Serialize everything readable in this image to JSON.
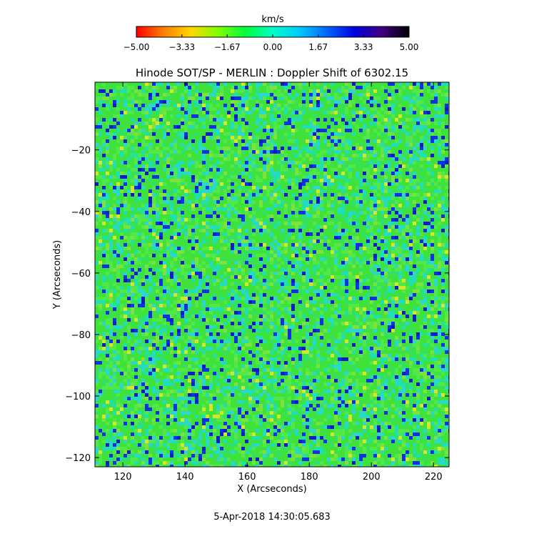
{
  "chart_data": {
    "type": "heatmap",
    "title": "Hinode SOT/SP - MERLIN : Doppler Shift of 6302.15",
    "xlabel": "X (Arcseconds)",
    "ylabel": "Y (Arcseconds)",
    "xlim": [
      111,
      225
    ],
    "ylim": [
      -123,
      2
    ],
    "x_ticks": [
      120,
      140,
      160,
      180,
      200,
      220
    ],
    "y_ticks": [
      -20,
      -40,
      -60,
      -80,
      -100,
      -120
    ],
    "x_tick_labels": [
      "120",
      "140",
      "160",
      "180",
      "200",
      "220"
    ],
    "y_tick_labels": [
      "−20",
      "−40",
      "−60",
      "−80",
      "−100",
      "−120"
    ],
    "colorbar": {
      "label": "km/s",
      "range": [
        -5.0,
        5.0
      ],
      "ticks": [
        -5.0,
        -3.33,
        -1.67,
        0.0,
        1.67,
        3.33,
        5.0
      ],
      "tick_labels": [
        "−5.00",
        "−3.33",
        "−1.67",
        "0.00",
        "1.67",
        "3.33",
        "5.00"
      ],
      "colormap": [
        "#ff0000",
        "#ff7f00",
        "#ffd700",
        "#7fff00",
        "#00ff3c",
        "#00ffc8",
        "#00c8ff",
        "#0064ff",
        "#0000e0",
        "#400080",
        "#000000"
      ]
    },
    "value_distribution": "Dense mottled granulation pattern dominated by green and cyan (about −1.5 to +1.5 km/s) with scattered dark-blue patches (about +3 km/s) and sparse yellow speckles (about −2.5 km/s)"
  },
  "footer": {
    "timestamp": "5-Apr-2018 14:30:05.683"
  }
}
